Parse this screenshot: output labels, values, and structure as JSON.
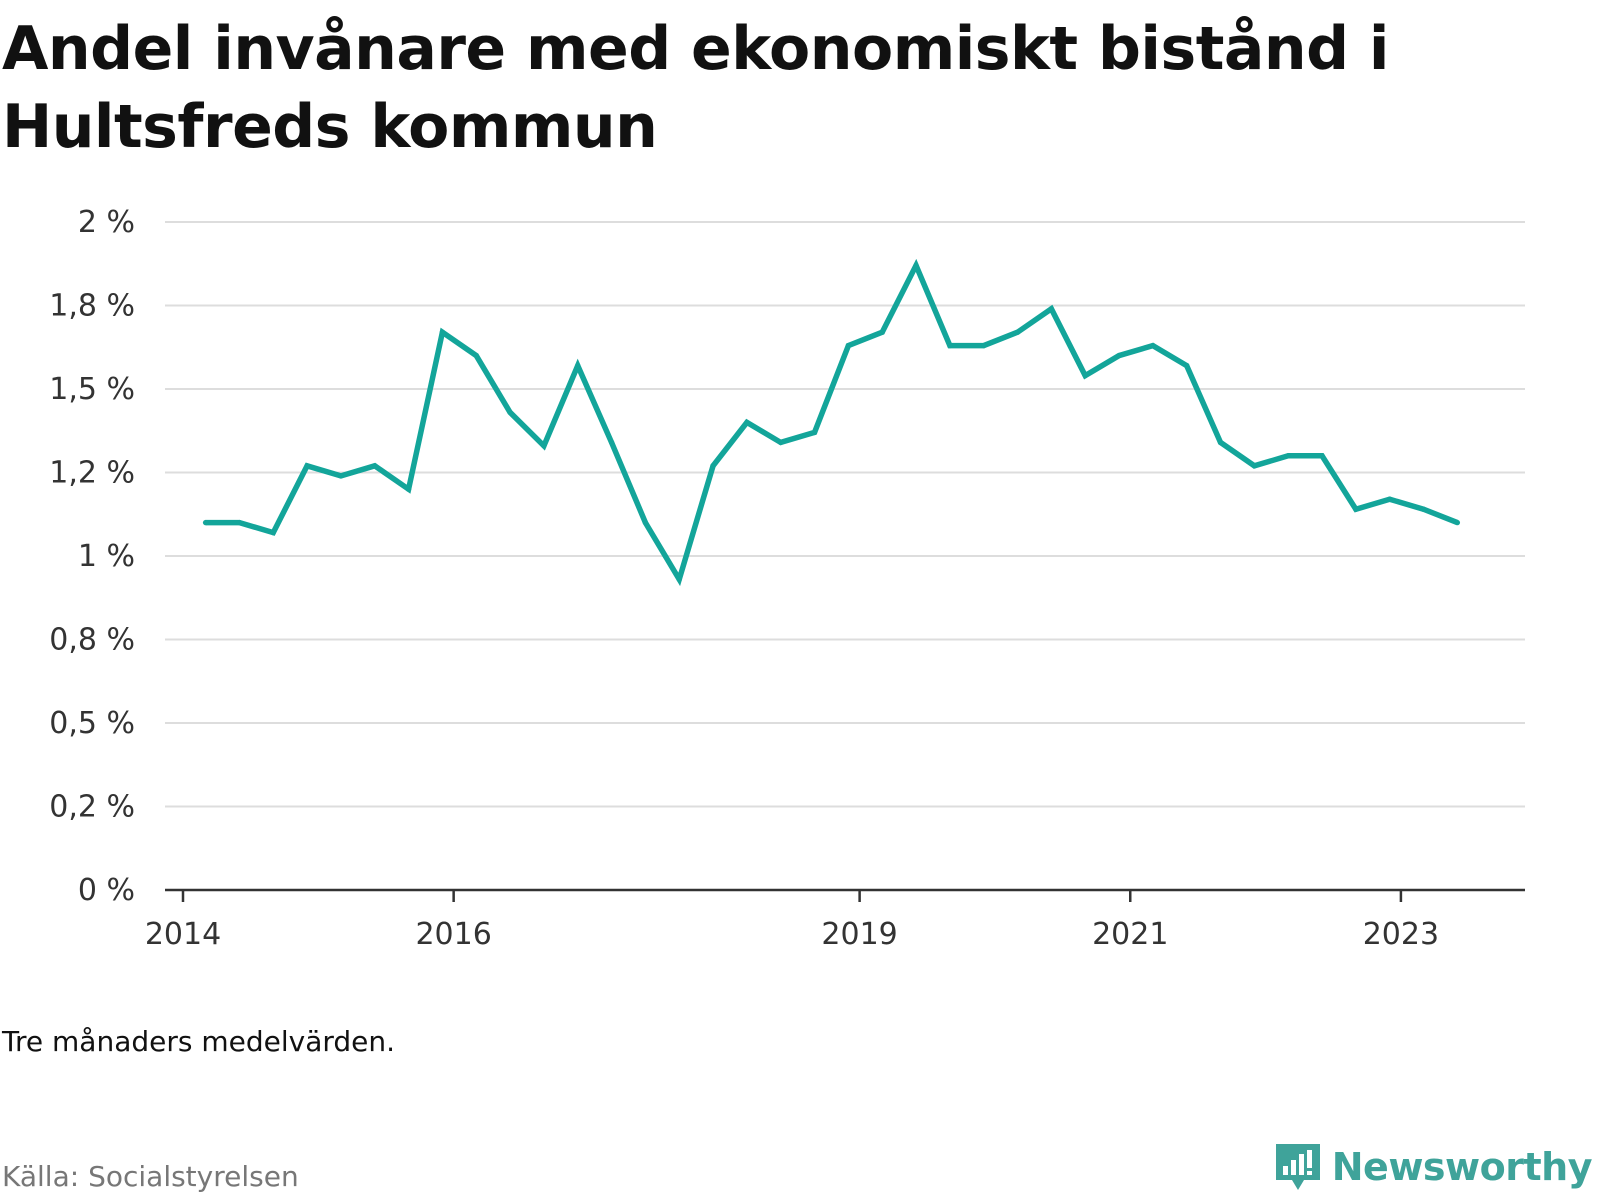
{
  "title": "Andel invånare med ekonomiskt bistånd i Hultsfreds kommun",
  "note": "Tre månaders medelvärden.",
  "source": "Källa: Socialstyrelsen",
  "logo": {
    "text": "Newsworthy",
    "icon": "newsworthy-chart-icon"
  },
  "colors": {
    "line": "#13a59a",
    "grid": "#dddddd",
    "axis": "#333333",
    "brand": "#3fa39a"
  },
  "chart_data": {
    "type": "line",
    "title": "Andel invånare med ekonomiskt bistånd i Hultsfreds kommun",
    "xlabel": "",
    "ylabel": "",
    "ylim": [
      0,
      2
    ],
    "xlim": [
      2014,
      2024.05
    ],
    "grid": true,
    "y_ticks": [
      {
        "value": 0,
        "label": "0 %"
      },
      {
        "value": 0.25,
        "label": "0,2 %"
      },
      {
        "value": 0.5,
        "label": "0,5 %"
      },
      {
        "value": 0.75,
        "label": "0,8 %"
      },
      {
        "value": 1.0,
        "label": "1 %"
      },
      {
        "value": 1.25,
        "label": "1,2 %"
      },
      {
        "value": 1.5,
        "label": "1,5 %"
      },
      {
        "value": 1.75,
        "label": "1,8 %"
      },
      {
        "value": 2.0,
        "label": "2 %"
      }
    ],
    "x_ticks": [
      {
        "value": 2014,
        "label": "2014"
      },
      {
        "value": 2016,
        "label": "2016"
      },
      {
        "value": 2019,
        "label": "2019"
      },
      {
        "value": 2021,
        "label": "2021"
      },
      {
        "value": 2023,
        "label": "2023"
      }
    ],
    "series": [
      {
        "x": [
          2014.3,
          2014.55,
          2014.8,
          2015.05,
          2015.3,
          2015.55,
          2015.8,
          2016.05,
          2016.3,
          2016.55,
          2016.8,
          2017.05,
          2017.3,
          2017.55,
          2017.8,
          2018.05,
          2018.3,
          2018.55,
          2018.8,
          2019.05,
          2019.3,
          2019.55,
          2019.8,
          2020.05,
          2020.3,
          2020.55,
          2020.8,
          2021.05,
          2021.3,
          2021.55,
          2021.8,
          2022.05,
          2022.3,
          2022.55,
          2022.8,
          2023.05,
          2023.3,
          2023.55
        ],
        "values": [
          1.1,
          1.1,
          1.07,
          1.27,
          1.24,
          1.27,
          1.2,
          1.67,
          1.6,
          1.43,
          1.33,
          1.57,
          1.34,
          1.1,
          0.93,
          1.27,
          1.4,
          1.34,
          1.37,
          1.63,
          1.67,
          1.87,
          1.63,
          1.63,
          1.67,
          1.74,
          1.54,
          1.6,
          1.63,
          1.57,
          1.34,
          1.27,
          1.3,
          1.3,
          1.14,
          1.17,
          1.14,
          1.1
        ]
      }
    ]
  }
}
